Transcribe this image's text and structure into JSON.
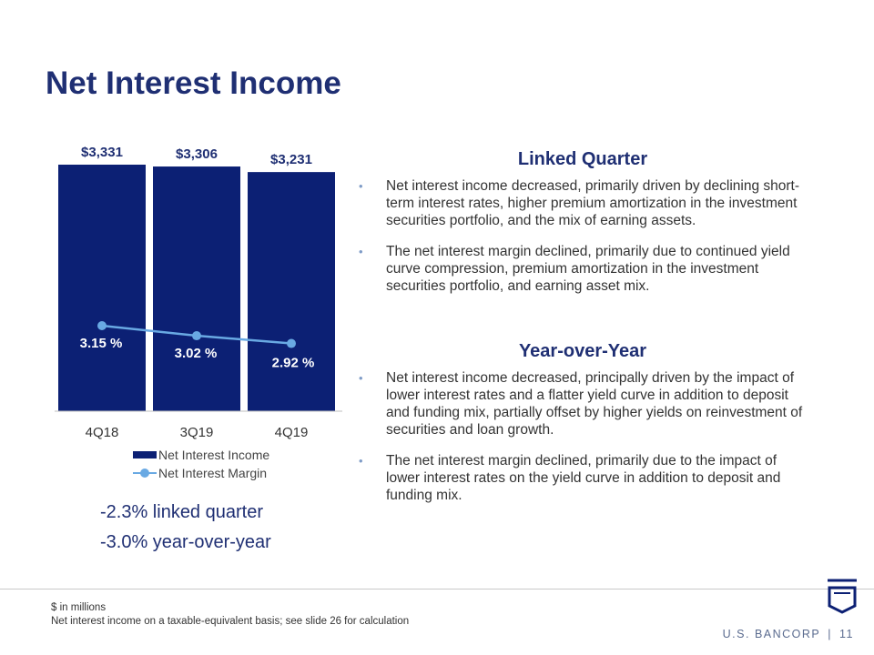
{
  "title": "Net Interest Income",
  "colors": {
    "bar": "#0c2074",
    "line": "#69a9e3",
    "title": "#1f2f73"
  },
  "chart_data": {
    "type": "bar",
    "categories": [
      "4Q18",
      "3Q19",
      "4Q19"
    ],
    "series": [
      {
        "name": "Net Interest Income",
        "type": "bar",
        "values": [
          3331,
          3306,
          3231
        ],
        "labels": [
          "$3,331",
          "$3,306",
          "$3,231"
        ]
      },
      {
        "name": "Net Interest Margin",
        "type": "line",
        "values": [
          3.15,
          3.02,
          2.92
        ],
        "labels": [
          "3.15 %",
          "3.02 %",
          "2.92 %"
        ]
      }
    ],
    "legend": [
      "Net Interest Income",
      "Net Interest Margin"
    ],
    "legend_position": "bottom",
    "grid": false
  },
  "changes": {
    "linked_quarter": "-2.3% linked quarter",
    "year_over_year": "-3.0% year-over-year"
  },
  "sections": [
    {
      "heading": "Linked Quarter",
      "bullets": [
        "Net interest income decreased, primarily driven by declining short-term interest rates, higher premium amortization in the investment securities portfolio, and the mix of earning assets.",
        "The net interest margin declined, primarily due to continued yield curve compression, premium amortization in the investment securities portfolio, and earning asset mix."
      ]
    },
    {
      "heading": "Year-over-Year",
      "bullets": [
        "Net interest income decreased, principally driven by the impact of lower interest rates and a flatter yield curve in addition to deposit and funding mix, partially offset by higher yields on reinvestment of securities and loan growth.",
        "The net interest margin declined, primarily due to the impact of lower interest rates on the yield curve in addition to deposit and funding mix."
      ]
    }
  ],
  "bullet_char": "•",
  "footnotes": [
    "$ in millions",
    "Net interest income on a taxable-equivalent basis; see slide 26 for calculation"
  ],
  "brand": {
    "name": "U.S. BANCORP",
    "separator": "|",
    "page": "11"
  }
}
